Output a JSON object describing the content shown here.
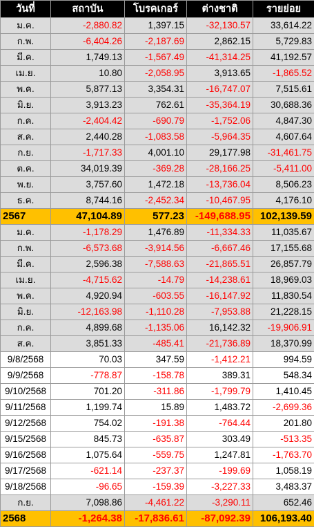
{
  "header": [
    "วันที่",
    "สถาบัน",
    "โบรคเกอร์",
    "ต่างชาติ",
    "รายย่อย"
  ],
  "rows": [
    {
      "label": "ม.ค.",
      "v": [
        "-2,880.82",
        "1,397.15",
        "-32,130.57",
        "33,614.22"
      ],
      "style": "grey"
    },
    {
      "label": "ก.พ.",
      "v": [
        "-6,404.26",
        "-2,187.69",
        "2,862.15",
        "5,729.83"
      ],
      "style": "grey"
    },
    {
      "label": "มี.ค.",
      "v": [
        "1,749.13",
        "-1,567.49",
        "-41,314.25",
        "41,192.57"
      ],
      "style": "grey"
    },
    {
      "label": "เม.ย.",
      "v": [
        "10.80",
        "-2,058.95",
        "3,913.65",
        "-1,865.52"
      ],
      "style": "grey"
    },
    {
      "label": "พ.ค.",
      "v": [
        "5,877.13",
        "3,354.31",
        "-16,747.07",
        "7,515.61"
      ],
      "style": "grey"
    },
    {
      "label": "มิ.ย.",
      "v": [
        "3,913.23",
        "762.61",
        "-35,364.19",
        "30,688.36"
      ],
      "style": "grey"
    },
    {
      "label": "ก.ค.",
      "v": [
        "-2,404.42",
        "-690.79",
        "-1,752.06",
        "4,847.30"
      ],
      "style": "grey"
    },
    {
      "label": "ส.ค.",
      "v": [
        "2,440.28",
        "-1,083.58",
        "-5,964.35",
        "4,607.64"
      ],
      "style": "grey"
    },
    {
      "label": "ก.ย.",
      "v": [
        "-1,717.33",
        "4,001.10",
        "29,177.98",
        "-31,461.75"
      ],
      "style": "grey"
    },
    {
      "label": "ต.ค.",
      "v": [
        "34,019.39",
        "-369.28",
        "-28,166.25",
        "-5,411.00"
      ],
      "style": "grey"
    },
    {
      "label": "พ.ย.",
      "v": [
        "3,757.60",
        "1,472.18",
        "-13,736.04",
        "8,506.23"
      ],
      "style": "grey"
    },
    {
      "label": "ธ.ค.",
      "v": [
        "8,744.16",
        "-2,452.34",
        "-10,467.95",
        "4,176.10"
      ],
      "style": "grey"
    },
    {
      "label": "2567",
      "v": [
        "47,104.89",
        "577.23",
        "-149,688.95",
        "102,139.59"
      ],
      "style": "total"
    },
    {
      "label": "ม.ค.",
      "v": [
        "-1,178.29",
        "1,476.89",
        "-11,334.33",
        "11,035.67"
      ],
      "style": "grey"
    },
    {
      "label": "ก.พ.",
      "v": [
        "-6,573.68",
        "-3,914.56",
        "-6,667.46",
        "17,155.68"
      ],
      "style": "grey"
    },
    {
      "label": "มี.ค.",
      "v": [
        "2,596.38",
        "-7,588.63",
        "-21,865.51",
        "26,857.79"
      ],
      "style": "grey"
    },
    {
      "label": "เม.ย.",
      "v": [
        "-4,715.62",
        "-14.79",
        "-14,238.61",
        "18,969.03"
      ],
      "style": "grey"
    },
    {
      "label": "พ.ค.",
      "v": [
        "4,920.94",
        "-603.55",
        "-16,147.92",
        "11,830.54"
      ],
      "style": "grey"
    },
    {
      "label": "มิ.ย.",
      "v": [
        "-12,163.98",
        "-1,110.28",
        "-7,953.88",
        "21,228.15"
      ],
      "style": "grey"
    },
    {
      "label": "ก.ค.",
      "v": [
        "4,899.68",
        "-1,135.06",
        "16,142.32",
        "-19,906.91"
      ],
      "style": "grey"
    },
    {
      "label": "ส.ค.",
      "v": [
        "3,851.33",
        "-485.41",
        "-21,736.89",
        "18,370.99"
      ],
      "style": "grey"
    },
    {
      "label": "9/8/2568",
      "v": [
        "70.03",
        "347.59",
        "-1,412.21",
        "994.59"
      ],
      "style": "white"
    },
    {
      "label": "9/9/2568",
      "v": [
        "-778.87",
        "-158.78",
        "389.31",
        "548.34"
      ],
      "style": "white"
    },
    {
      "label": "9/10/2568",
      "v": [
        "701.20",
        "-311.86",
        "-1,799.79",
        "1,410.45"
      ],
      "style": "white"
    },
    {
      "label": "9/11/2568",
      "v": [
        "1,199.74",
        "15.89",
        "1,483.72",
        "-2,699.36"
      ],
      "style": "white"
    },
    {
      "label": "9/12/2568",
      "v": [
        "754.02",
        "-191.38",
        "-764.44",
        "201.80"
      ],
      "style": "white"
    },
    {
      "label": "9/15/2568",
      "v": [
        "845.73",
        "-635.87",
        "303.49",
        "-513.35"
      ],
      "style": "white"
    },
    {
      "label": "9/16/2568",
      "v": [
        "1,075.64",
        "-559.75",
        "1,247.81",
        "-1,763.70"
      ],
      "style": "white"
    },
    {
      "label": "9/17/2568",
      "v": [
        "-621.14",
        "-237.37",
        "-199.69",
        "1,058.19"
      ],
      "style": "white"
    },
    {
      "label": "9/18/2568",
      "v": [
        "-96.65",
        "-159.39",
        "-3,227.33",
        "3,483.37"
      ],
      "style": "white"
    },
    {
      "label": "ก.ย.",
      "v": [
        "7,098.86",
        "-4,461.22",
        "-3,290.11",
        "652.46"
      ],
      "style": "grey"
    },
    {
      "label": "2568",
      "v": [
        "-1,264.38",
        "-17,836.61",
        "-87,092.39",
        "106,193.40"
      ],
      "style": "total"
    }
  ]
}
